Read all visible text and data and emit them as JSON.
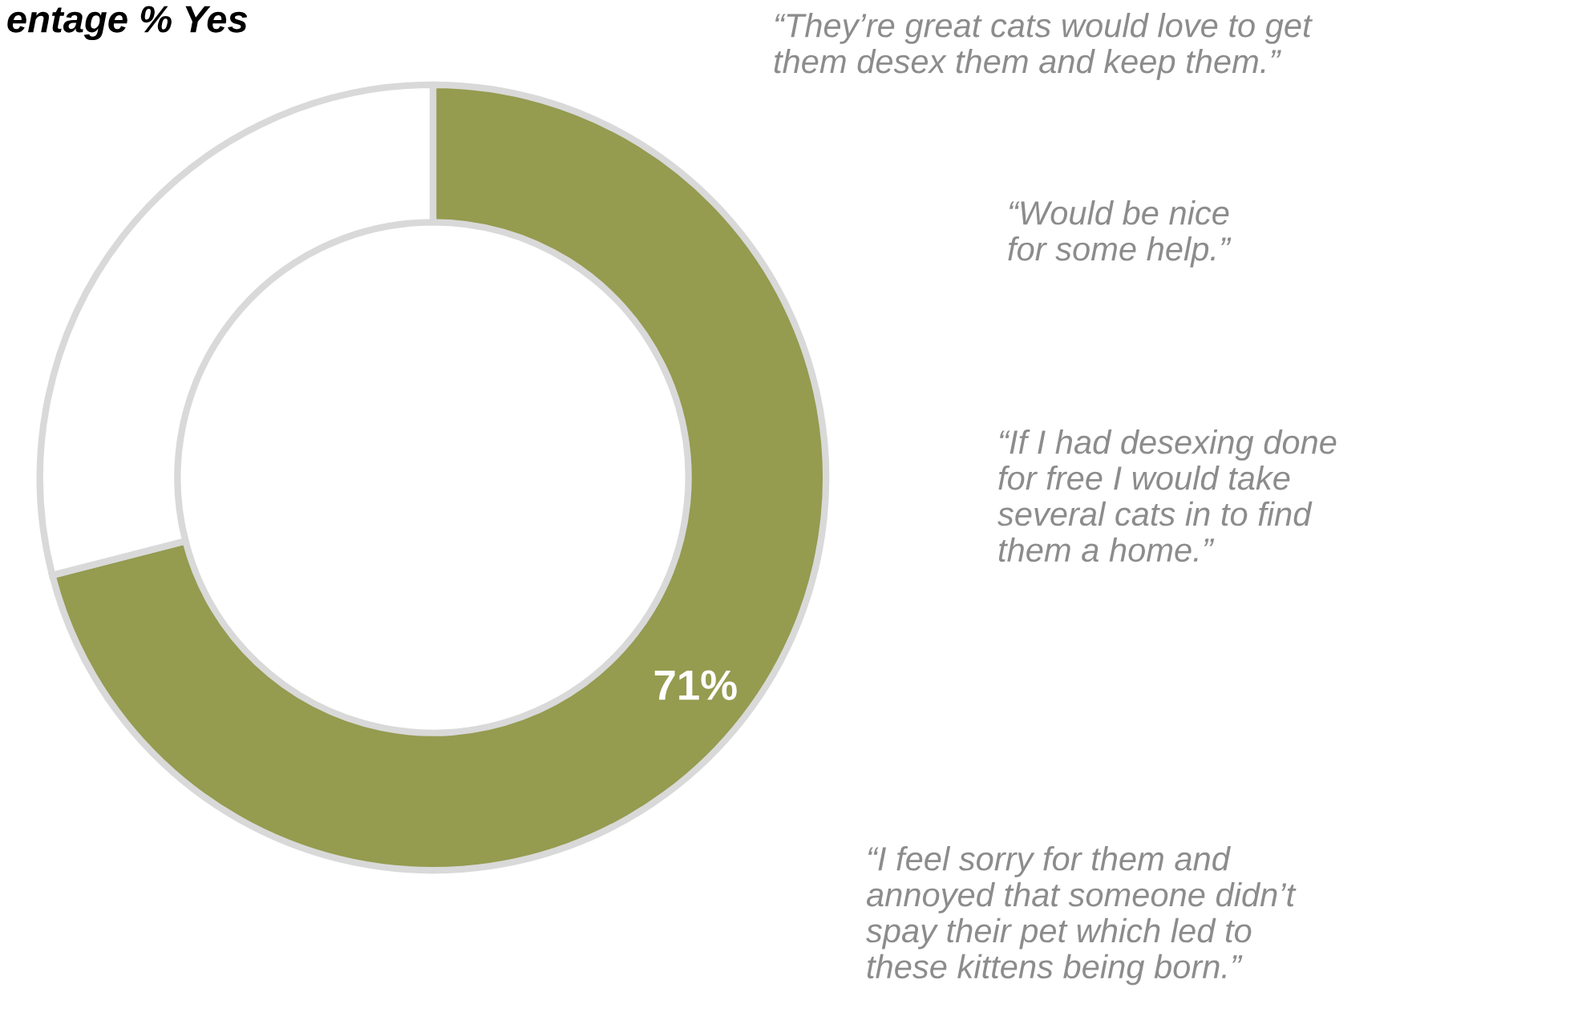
{
  "chart_data": {
    "type": "donut",
    "title": "entage % Yes",
    "categories": [
      null,
      null
    ],
    "values": [
      71,
      29
    ],
    "colors": [
      "#959b4f",
      "#ffffff"
    ],
    "value_labels": [
      "71%",
      null
    ],
    "annotations": [
      "“They’re great cats would love to get\nthem desex them and keep them.”",
      "“Would be nice\nfor some help.”",
      "“If I had desexing done\nfor free I would take\nseveral cats in to find\nthem a home.”",
      "“I feel sorry for them and\nannoyed that someone didn’t\nspay their pet which led to\nthese kittens being born.”"
    ]
  }
}
